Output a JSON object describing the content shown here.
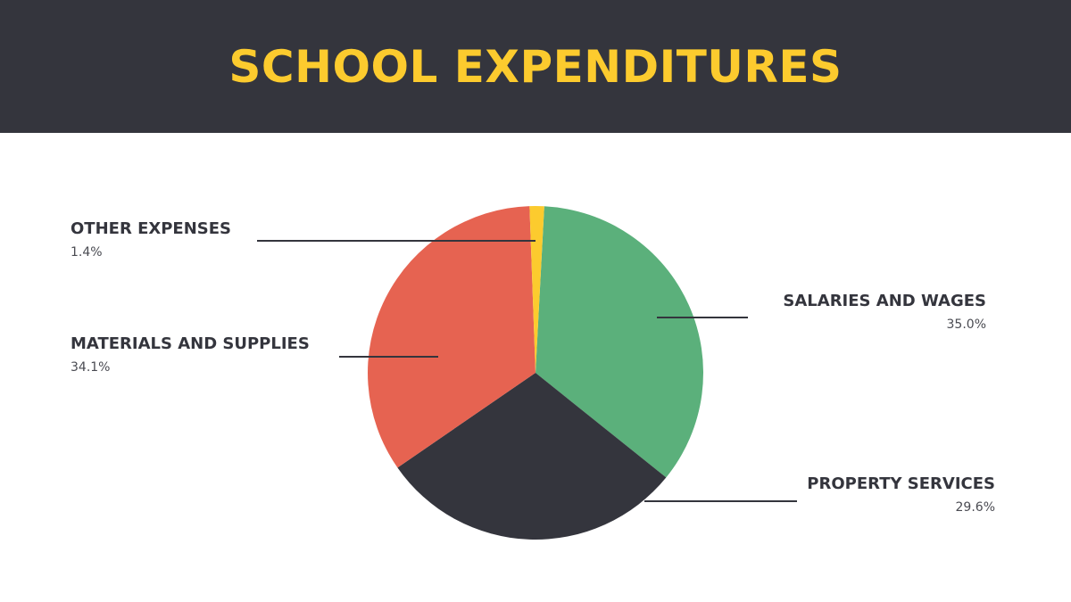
{
  "header": {
    "title": "SCHOOL EXPENDITURES"
  },
  "colors": {
    "header_bg": "#34353d",
    "title": "#fccb2e",
    "leader_line": "#34353d"
  },
  "chart_data": {
    "type": "pie",
    "title": "SCHOOL EXPENDITURES",
    "slices": [
      {
        "label": "SALARIES AND WAGES",
        "value": 35.0,
        "display": "35.0%",
        "color": "#5bb07b"
      },
      {
        "label": "PROPERTY SERVICES",
        "value": 29.6,
        "display": "29.6%",
        "color": "#34353d"
      },
      {
        "label": "MATERIALS AND SUPPLIES",
        "value": 34.1,
        "display": "34.1%",
        "color": "#e66351"
      },
      {
        "label": "OTHER EXPENSES",
        "value": 1.4,
        "display": "1.4%",
        "color": "#fccb2e"
      }
    ],
    "start_angle_deg": 3,
    "direction": "clockwise",
    "legend": "callout labels"
  }
}
